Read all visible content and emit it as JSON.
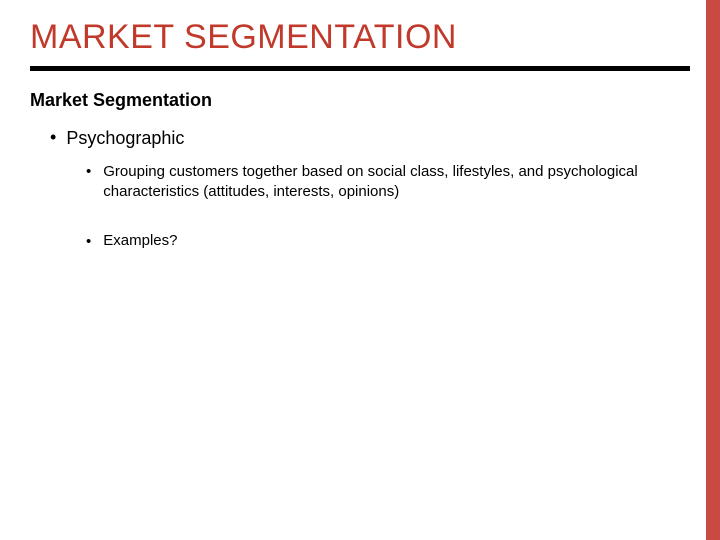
{
  "slide": {
    "title": "MARKET SEGMENTATION",
    "title_color": "#c0392b",
    "underline_color": "#000000",
    "subheading": "Market Segmentation",
    "bullets": {
      "level1": {
        "text": "Psychographic",
        "marker": "•"
      },
      "level2": [
        {
          "text": "Grouping customers together based on social class, lifestyles, and psychological characteristics (attitudes, interests, opinions)",
          "marker": "•"
        },
        {
          "text": "Examples?",
          "marker": "•"
        }
      ]
    },
    "side_bar_color": "#c94a43",
    "background_color": "#ffffff",
    "text_color": "#000000"
  }
}
